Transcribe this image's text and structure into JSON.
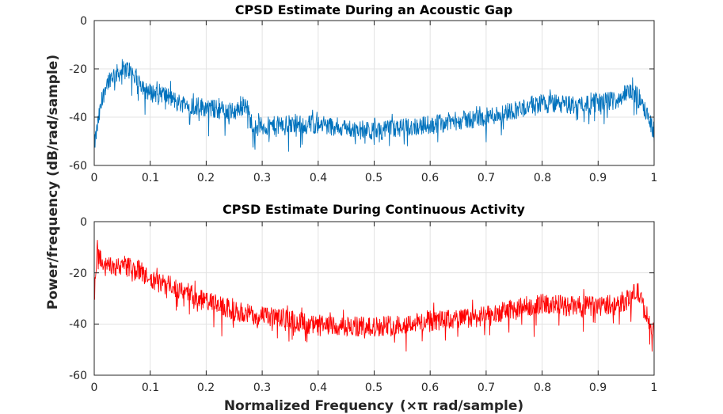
{
  "figure": {
    "ylabel": "Power/frequency (dB/rad/sample)",
    "xlabel_main": "Normalized Frequency",
    "xlabel_unit": "(×π rad/sample)"
  },
  "chart_data": [
    {
      "type": "line",
      "title": "CPSD Estimate During an Acoustic Gap",
      "series_name": "gap",
      "color": "#0072BD",
      "xlim": [
        0,
        1
      ],
      "ylim": [
        -60,
        0
      ],
      "x_ticks": [
        0,
        0.1,
        0.2,
        0.3,
        0.4,
        0.5,
        0.6,
        0.7,
        0.8,
        0.9,
        1
      ],
      "x_tick_labels": [
        "0",
        "0.1",
        "0.2",
        "0.3",
        "0.4",
        "0.5",
        "0.6",
        "0.7",
        "0.8",
        "0.9",
        "1"
      ],
      "y_ticks": [
        0,
        -20,
        -40,
        -60
      ],
      "y_tick_labels": [
        "0",
        "-20",
        "-40",
        "-60"
      ],
      "grid": true,
      "noise_db": 4,
      "points": 1400,
      "envelope": [
        [
          0,
          -52
        ],
        [
          0.01,
          -38
        ],
        [
          0.02,
          -27
        ],
        [
          0.03,
          -23
        ],
        [
          0.05,
          -21
        ],
        [
          0.06,
          -20
        ],
        [
          0.08,
          -25
        ],
        [
          0.1,
          -30
        ],
        [
          0.12,
          -30
        ],
        [
          0.15,
          -34
        ],
        [
          0.2,
          -36
        ],
        [
          0.25,
          -38
        ],
        [
          0.27,
          -34
        ],
        [
          0.28,
          -42
        ],
        [
          0.3,
          -44
        ],
        [
          0.35,
          -43
        ],
        [
          0.4,
          -43
        ],
        [
          0.5,
          -46
        ],
        [
          0.6,
          -43
        ],
        [
          0.7,
          -40
        ],
        [
          0.75,
          -37
        ],
        [
          0.8,
          -34
        ],
        [
          0.85,
          -35
        ],
        [
          0.9,
          -34
        ],
        [
          0.93,
          -33
        ],
        [
          0.96,
          -29
        ],
        [
          0.98,
          -34
        ],
        [
          1,
          -46
        ]
      ]
    },
    {
      "type": "line",
      "title": "CPSD Estimate During Continuous Activity",
      "series_name": "activity",
      "color": "#FF0000",
      "xlim": [
        0,
        1
      ],
      "ylim": [
        -60,
        0
      ],
      "x_ticks": [
        0,
        0.1,
        0.2,
        0.3,
        0.4,
        0.5,
        0.6,
        0.7,
        0.8,
        0.9,
        1
      ],
      "x_tick_labels": [
        "0",
        "0.1",
        "0.2",
        "0.3",
        "0.4",
        "0.5",
        "0.6",
        "0.7",
        "0.8",
        "0.9",
        "1"
      ],
      "y_ticks": [
        0,
        -20,
        -40,
        -60
      ],
      "y_tick_labels": [
        "0",
        "-20",
        "-40",
        "-60"
      ],
      "grid": true,
      "noise_db": 4,
      "points": 1400,
      "envelope": [
        [
          0,
          -30
        ],
        [
          0.005,
          -10
        ],
        [
          0.01,
          -14
        ],
        [
          0.02,
          -18
        ],
        [
          0.05,
          -17
        ],
        [
          0.08,
          -19
        ],
        [
          0.1,
          -23
        ],
        [
          0.15,
          -26
        ],
        [
          0.2,
          -31
        ],
        [
          0.25,
          -35
        ],
        [
          0.3,
          -37
        ],
        [
          0.35,
          -38
        ],
        [
          0.4,
          -41
        ],
        [
          0.45,
          -41
        ],
        [
          0.5,
          -41
        ],
        [
          0.55,
          -40
        ],
        [
          0.6,
          -39
        ],
        [
          0.7,
          -37
        ],
        [
          0.75,
          -34
        ],
        [
          0.8,
          -32
        ],
        [
          0.85,
          -33
        ],
        [
          0.9,
          -33
        ],
        [
          0.95,
          -31
        ],
        [
          0.97,
          -27
        ],
        [
          0.98,
          -33
        ],
        [
          1,
          -44
        ]
      ]
    }
  ]
}
